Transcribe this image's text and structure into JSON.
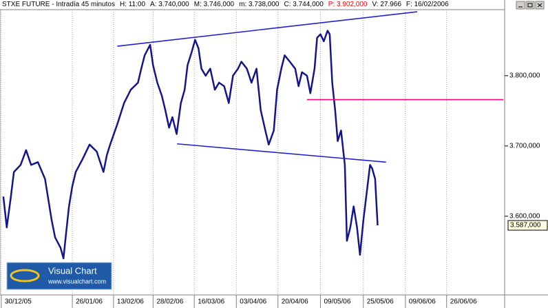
{
  "chart_data": {
    "type": "line",
    "header_items": [
      {
        "text": "STXE FUTURE - Intradía 45 minutos",
        "color": "#000000"
      },
      {
        "text": "H: 11:00",
        "color": "#000000"
      },
      {
        "text": "A: 3.740,000",
        "color": "#000000"
      },
      {
        "text": "M: 3.746,000",
        "color": "#000000"
      },
      {
        "text": "m: 3.738,000",
        "color": "#000000"
      },
      {
        "text": "C: 3.744,000",
        "color": "#000000"
      },
      {
        "text": "P: 3.902,000",
        "color": "#ff0000"
      },
      {
        "text": "V: 27.966",
        "color": "#000000"
      },
      {
        "text": "F: 16/02/2006",
        "color": "#000000"
      }
    ],
    "x": [
      0.8,
      1.6,
      2.5,
      3.3,
      4.9,
      6.2,
      7.4,
      9.0,
      10.7,
      12.3,
      13.1,
      14.4,
      15.1,
      15.7,
      16.4,
      17.2,
      18.0,
      19.7,
      21.3,
      23.0,
      24.6,
      25.4,
      26.2,
      27.9,
      29.5,
      31.1,
      32.8,
      33.6,
      34.4,
      35.7,
      36.4,
      37.4,
      38.5,
      39.3,
      40.2,
      41.0,
      42.0,
      43.0,
      43.9,
      44.6,
      45.6,
      46.4,
      47.2,
      47.9,
      48.9,
      50.0,
      51.1,
      52.1,
      53.3,
      54.4,
      55.4,
      56.6,
      57.4,
      58.7,
      59.8,
      61.0,
      62.0,
      63.1,
      63.9,
      65.1,
      65.9,
      66.9,
      67.7,
      68.9,
      70.2,
      71.0,
      71.8,
      73.0,
      73.8,
      74.8,
      75.4,
      76.2,
      77.0,
      77.9,
      78.4,
      79.0,
      79.7,
      80.3,
      81.1,
      82.0,
      82.5,
      83.3,
      84.1,
      84.9,
      85.6,
      86.4,
      87.2,
      88.0,
      88.5,
      89.2,
      89.8
    ],
    "series": [
      {
        "color": "#14148c",
        "values": [
          3628,
          3584,
          3624,
          3663,
          3673,
          3694,
          3673,
          3677,
          3653,
          3594,
          3570,
          3555,
          3540,
          3575,
          3614,
          3643,
          3663,
          3682,
          3702,
          3692,
          3663,
          3687,
          3702,
          3731,
          3761,
          3780,
          3790,
          3810,
          3829,
          3844,
          3815,
          3790,
          3771,
          3751,
          3726,
          3741,
          3717,
          3761,
          3780,
          3815,
          3834,
          3851,
          3839,
          3810,
          3800,
          3810,
          3780,
          3790,
          3785,
          3761,
          3800,
          3810,
          3820,
          3810,
          3790,
          3810,
          3751,
          3722,
          3702,
          3722,
          3780,
          3810,
          3829,
          3820,
          3810,
          3785,
          3805,
          3800,
          3775,
          3810,
          3854,
          3859,
          3849,
          3864,
          3859,
          3790,
          3751,
          3707,
          3722,
          3673,
          3565,
          3584,
          3614,
          3584,
          3545,
          3594,
          3633,
          3673,
          3668,
          3653,
          3587
        ]
      }
    ],
    "trend_lines": [
      {
        "color": "#2020d0",
        "x": [
          27.9,
          99.2
        ],
        "y": [
          3842,
          3891
        ]
      },
      {
        "color": "#2020d0",
        "x": [
          42.1,
          91.8
        ],
        "y": [
          3703,
          3677
        ]
      },
      {
        "color": "#ff0080",
        "x": [
          73.0,
          119.7
        ],
        "y": [
          3766,
          3766
        ]
      }
    ],
    "last_price": {
      "value": 3587,
      "label": "3.587,000"
    },
    "xlim": [
      0,
      120
    ],
    "ylim": [
      3488,
      3894
    ],
    "xticks": [
      {
        "value": 0.3,
        "label": "30/12/05"
      },
      {
        "value": 17.2,
        "label": "26/01/06"
      },
      {
        "value": 27.0,
        "label": "13/02/06"
      },
      {
        "value": 36.4,
        "label": "28/02/06"
      },
      {
        "value": 46.2,
        "label": "16/03/06"
      },
      {
        "value": 56.2,
        "label": "03/04/06"
      },
      {
        "value": 66.1,
        "label": "20/04/06"
      },
      {
        "value": 76.2,
        "label": "09/05/06"
      },
      {
        "value": 86.4,
        "label": "25/05/06"
      },
      {
        "value": 96.4,
        "label": "09/06/06"
      },
      {
        "value": 106.2,
        "label": "26/06/06"
      }
    ],
    "yticks": [
      {
        "value": 3600,
        "label": "3.600,000"
      },
      {
        "value": 3700,
        "label": "3.700,000"
      },
      {
        "value": 3800,
        "label": "3.800,000"
      }
    ],
    "grid": "x",
    "logo": {
      "title": "Visual Chart",
      "url": "www.visualchart.com"
    }
  }
}
